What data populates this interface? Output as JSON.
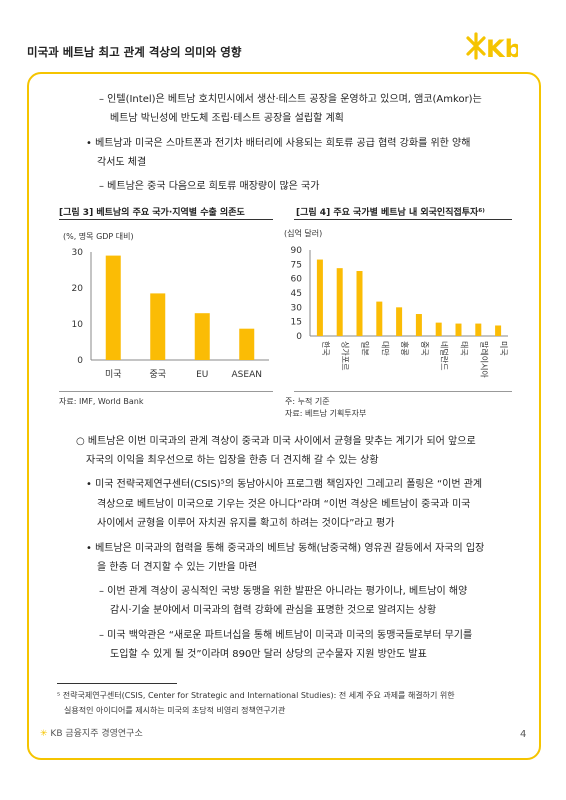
{
  "header": {
    "title": "미국과 베트남 최고 관계 격상의 의미와 영향",
    "logo_text": "Kb"
  },
  "body": {
    "p1_line1": "– 인텔(Intel)은 베트남 호치민시에서 생산·테스트 공장을 운영하고 있으며, 앰코(Amkor)는",
    "p1_line2": "베트남 박닌성에 반도체 조립·테스트 공장을 설립할 계획",
    "p2_line1": "• 베트남과 미국은 스마트폰과 전기차 배터리에 사용되는 희토류 공급 협력 강화를 위한 양해",
    "p2_line2": "각서도 체결",
    "p3_line1": "– 베트남은 중국 다음으로 희토류 매장량이 많은 국가",
    "p4_line1": "○ 베트남은 이번 미국과의 관계 격상이 중국과 미국 사이에서 균형을 맞추는 계기가 되어 앞으로",
    "p4_line2": "자국의 이익을 최우선으로 하는 입장을 한층 더 견지해 갈 수 있는 상황",
    "p5_line1": "• 미국 전략국제연구센터(CSIS)⁵의 동남아시아 프로그램 책임자인 그레고리 폴링은 “이번 관계",
    "p5_line2": "격상으로 베트남이 미국으로 기우는 것은 아니다”라며 “이번 격상은 베트남이 중국과 미국",
    "p5_line3": "사이에서 균형을 이루어 자치권 유지를 확고히 하려는 것이다”라고 평가",
    "p6_line1": "• 베트남은 미국과의 협력을 통해 중국과의 베트남 동해(남중국해) 영유권 갈등에서 자국의 입장",
    "p6_line2": "을 한층 더 견지할 수 있는 기반을 마련",
    "p7_line1": "– 이번 관계 격상이 공식적인 국방 동맹을 위한 발판은 아니라는 평가이나, 베트남이 해양",
    "p7_line2": "감시·기술 분야에서 미국과의 협력 강화에 관심을 표명한 것으로 알려지는 상황",
    "p8_line1": "– 미국 백악관은 “새로운 파트너십을 통해 베트남이 미국과 미국의 동맹국들로부터 무기를",
    "p8_line2": "도입할 수 있게 될 것”이라며 890만 달러 상당의 군수물자 지원 방안도 발표"
  },
  "footnote": {
    "line1": "⁵ 전략국제연구센터(CSIS, Center for Strategic and International Studies): 전 세계 주요 과제를 해결하기 위한",
    "line2": "실용적인 아이디어를 제시하는 미국의 초당적 비영리 정책연구기관"
  },
  "footer": {
    "org": "KB 금융지주 경영연구소",
    "page": "4"
  },
  "colors": {
    "accent": "#f5c400",
    "bar": "#fbbc05"
  },
  "chart_data": [
    {
      "type": "bar",
      "title": "[그림 3] 베트남의 주요 국가·지역별 수출 의존도",
      "ylabel": "(%, 명목 GDP 대비)",
      "categories": [
        "미국",
        "중국",
        "EU",
        "ASEAN"
      ],
      "values": [
        29,
        18.5,
        13,
        8.7
      ],
      "ylim": [
        0,
        30
      ],
      "yticks": [
        "0",
        "10",
        "20",
        "30"
      ],
      "source": "자료: IMF, World Bank"
    },
    {
      "type": "bar",
      "title": "[그림 4] 주요 국가별 베트남 내 외국인직접투자⁶⁾",
      "ylabel": "(십억 달러)",
      "categories": [
        "한국",
        "싱가포르",
        "일본",
        "대만",
        "홍콩",
        "중국",
        "네덜란드",
        "태국",
        "말레이시아",
        "미국"
      ],
      "values": [
        80,
        71,
        68,
        36,
        30,
        23,
        14,
        13,
        13,
        11
      ],
      "ylim": [
        0,
        90
      ],
      "yticks": [
        "0",
        "15",
        "30",
        "45",
        "60",
        "75",
        "90"
      ],
      "note": "주: 누적 기준",
      "source": "자료: 베트남 기획투자부"
    }
  ]
}
